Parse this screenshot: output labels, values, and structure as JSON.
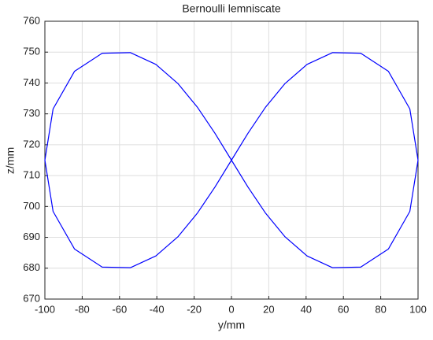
{
  "chart_data": {
    "type": "line",
    "title": "Bernoulli lemniscate",
    "xlabel": "y/mm",
    "ylabel": "z/mm",
    "x": [
      100,
      95.6,
      84.13,
      69.28,
      54.21,
      40.51,
      28.57,
      18.16,
      8.82,
      0,
      -8.82,
      -18.16,
      -28.57,
      -40.51,
      -54.21,
      -69.28,
      -84.13,
      -95.6,
      -100,
      -95.6,
      -84.13,
      -69.28,
      -54.21,
      -40.51,
      -28.57,
      -18.16,
      -8.82,
      0,
      8.82,
      18.16,
      28.57,
      40.51,
      54.21,
      69.28,
      84.13,
      95.6,
      100
    ],
    "values": [
      715,
      731.6,
      743.77,
      749.64,
      749.84,
      746.03,
      739.74,
      732.07,
      723.68,
      715,
      706.32,
      697.93,
      690.26,
      683.97,
      680.16,
      680.36,
      686.23,
      698.4,
      715,
      731.6,
      743.77,
      749.64,
      749.84,
      746.03,
      739.74,
      732.07,
      723.68,
      715,
      706.32,
      697.93,
      690.26,
      683.97,
      680.16,
      680.36,
      686.23,
      698.4,
      715
    ],
    "color": "#0000ff",
    "xlim": [
      -100,
      100
    ],
    "xticks": [
      -100,
      -80,
      -60,
      -40,
      -20,
      0,
      20,
      40,
      60,
      80,
      100
    ],
    "ylim": [
      670,
      760
    ],
    "yticks": [
      670,
      680,
      690,
      700,
      710,
      720,
      730,
      740,
      750,
      760
    ],
    "grid": true
  }
}
